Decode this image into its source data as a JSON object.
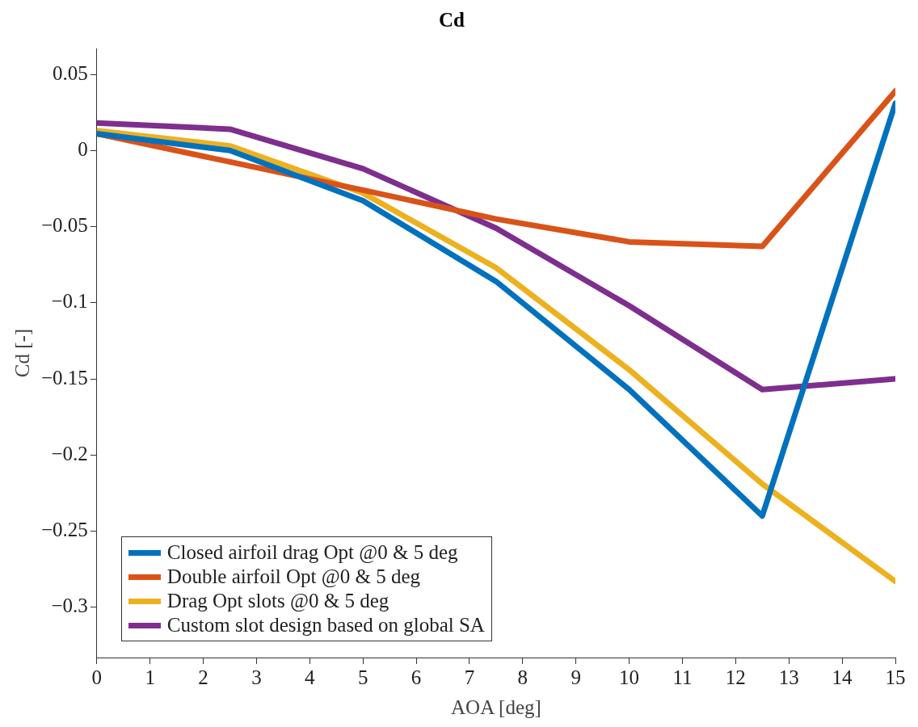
{
  "chart_data": {
    "type": "line",
    "title": "Cd",
    "xlabel": "AOA [deg]",
    "ylabel": "Cd [-]",
    "x": [
      0,
      2.5,
      5,
      7.5,
      10,
      12.5,
      15
    ],
    "series": [
      {
        "name": "Closed airfoil drag Opt @0 & 5 deg",
        "color": "#0072bd",
        "values": [
          0.011,
          0,
          -0.033,
          -0.086,
          -0.157,
          -0.24,
          0.031
        ]
      },
      {
        "name": "Double airfoil Opt @0 & 5 deg",
        "color": "#d95319",
        "values": [
          0.011,
          -0.0075,
          -0.026,
          -0.045,
          -0.06,
          -0.063,
          0.039
        ]
      },
      {
        "name": "Drag Opt slots @0 & 5 deg",
        "color": "#edb120",
        "values": [
          0.013,
          0.003,
          -0.028,
          -0.077,
          -0.144,
          -0.219,
          -0.283
        ]
      },
      {
        "name": "Custom slot design based on global SA",
        "color": "#7e2f8e",
        "values": [
          0.018,
          0.014,
          -0.012,
          -0.051,
          -0.102,
          -0.157,
          -0.15
        ]
      }
    ],
    "xlim": [
      0,
      15
    ],
    "xticks": [
      0,
      1,
      2,
      3,
      4,
      5,
      6,
      7,
      8,
      9,
      10,
      11,
      12,
      13,
      14,
      15
    ],
    "ylim": [
      -0.333,
      0.067
    ],
    "yticks": [
      {
        "value": -0.3,
        "label": "−0.3"
      },
      {
        "value": -0.25,
        "label": "−0.25"
      },
      {
        "value": -0.2,
        "label": "−0.2"
      },
      {
        "value": -0.15,
        "label": "−0.15"
      },
      {
        "value": -0.1,
        "label": "−0.1"
      },
      {
        "value": -0.05,
        "label": "−0.05"
      },
      0,
      0.05
    ],
    "grid": false,
    "legend": "bottom left",
    "marker": "none",
    "line_style": "solid"
  }
}
